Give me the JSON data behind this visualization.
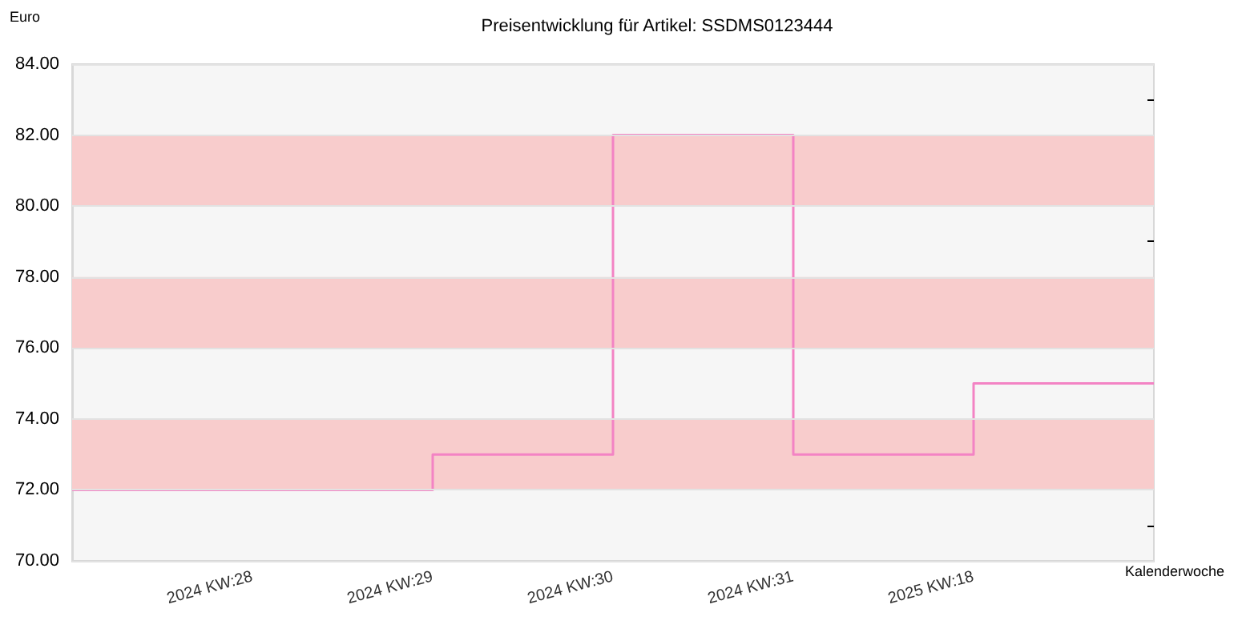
{
  "chart_data": {
    "type": "step",
    "title": "Preisentwicklung für Artikel: SSDMS0123444",
    "ylabel": "Euro",
    "xlabel": "Kalenderwoche",
    "categories": [
      null,
      "2024 KW:28",
      "2024 KW:29",
      "2024 KW:30",
      "2024 KW:31",
      "2025 KW:18",
      null
    ],
    "series": [
      {
        "color": "#f383c4",
        "values": [
          72,
          72,
          73,
          82,
          73,
          75,
          75
        ]
      }
    ],
    "ylim": [
      70,
      84
    ],
    "yticks": [
      {
        "value": 70,
        "label": "70.00"
      },
      {
        "value": 71,
        "label": null
      },
      {
        "value": 72,
        "label": "72.00"
      },
      {
        "value": 73,
        "label": null
      },
      {
        "value": 74,
        "label": "74.00"
      },
      {
        "value": 75,
        "label": null
      },
      {
        "value": 76,
        "label": "76.00"
      },
      {
        "value": 77,
        "label": null
      },
      {
        "value": 78,
        "label": "78.00"
      },
      {
        "value": 79,
        "label": null
      },
      {
        "value": 80,
        "label": "80.00"
      },
      {
        "value": 81,
        "label": null
      },
      {
        "value": 82,
        "label": "82.00"
      },
      {
        "value": 83,
        "label": null
      },
      {
        "value": 84,
        "label": "84.00"
      }
    ],
    "bands": [
      {
        "axis": "y",
        "from": 72,
        "to": 74,
        "color": "#f8cccc"
      },
      {
        "axis": "y",
        "from": 76,
        "to": 78,
        "color": "#f8cccc"
      },
      {
        "axis": "y",
        "from": 80,
        "to": 82,
        "color": "#f8cccc"
      }
    ],
    "grid": "y",
    "marker": "none",
    "line_style": "solid"
  }
}
